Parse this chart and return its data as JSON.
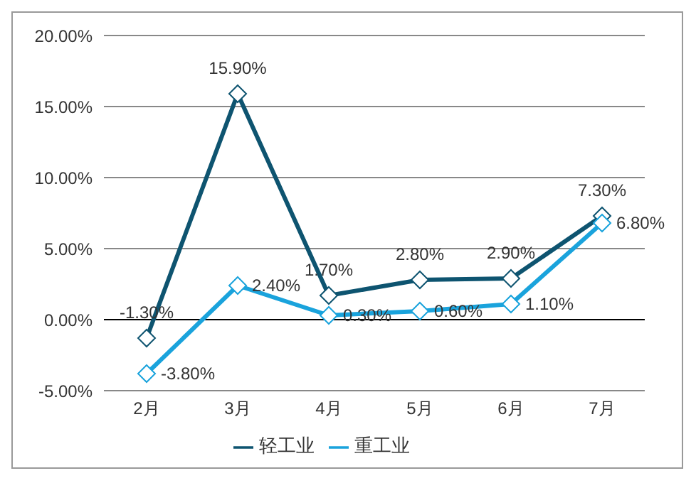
{
  "chart_data": {
    "type": "line",
    "categories": [
      "2月",
      "3月",
      "4月",
      "5月",
      "6月",
      "7月"
    ],
    "series": [
      {
        "name": "轻工业",
        "color": "#0e5470",
        "values": [
          -1.3,
          15.9,
          1.7,
          2.8,
          2.9,
          7.3
        ],
        "value_labels": [
          "-1.30%",
          "15.90%",
          "1.70%",
          "2.80%",
          "2.90%",
          "7.30%"
        ]
      },
      {
        "name": "重工业",
        "color": "#1aa3dc",
        "values": [
          -3.8,
          2.4,
          0.3,
          0.6,
          1.1,
          6.8
        ],
        "value_labels": [
          "-3.80%",
          "2.40%",
          "0.30%",
          "0.60%",
          "1.10%",
          "6.80%"
        ]
      }
    ],
    "ylim": [
      -5,
      20
    ],
    "yticks": [
      {
        "value": -5,
        "label": "-5.00%"
      },
      {
        "value": 0,
        "label": "0.00%"
      },
      {
        "value": 5,
        "label": "5.00%"
      },
      {
        "value": 10,
        "label": "10.00%"
      },
      {
        "value": 15,
        "label": "15.00%"
      },
      {
        "value": 20,
        "label": "20.00%"
      }
    ],
    "grid": "y",
    "legend": "bottom",
    "marker": "diamond",
    "line_style": "solid"
  }
}
